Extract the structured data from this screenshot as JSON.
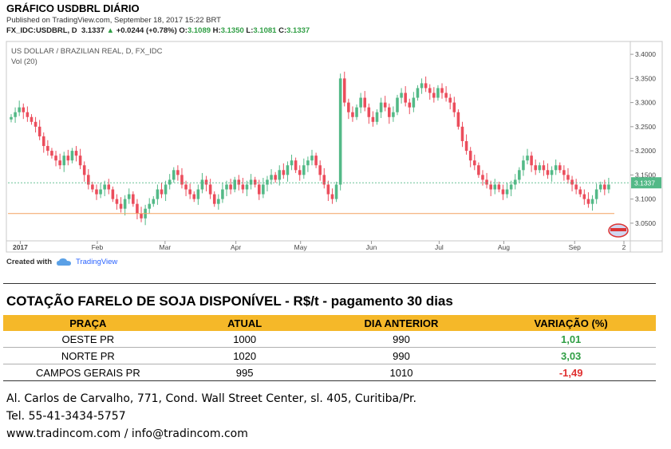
{
  "header": {
    "title": "GRÁFICO USDBRL DIÁRIO",
    "published": "Published on TradingView.com, September 18, 2017 15:22 BRT",
    "symbol": "FX_IDC:USDBRL, D",
    "last": "3.1337",
    "change": "+0.0244 (+0.78%)",
    "o_label": "O:",
    "o": "3.1089",
    "h_label": "H:",
    "h": "3.1350",
    "l_label": "L:",
    "l": "3.1081",
    "c_label": "C:",
    "c": "3.1337"
  },
  "chart_data": {
    "type": "candlestick",
    "legend_title": "US DOLLAR / BRAZILIAN REAL, D, FX_IDC",
    "volume_label": "Vol (20)",
    "y_ticks": [
      "3.4000",
      "3.3500",
      "3.3000",
      "3.2500",
      "3.2000",
      "3.1500",
      "3.1000",
      "3.0500"
    ],
    "ylim": [
      3.02,
      3.42
    ],
    "x_ticks": [
      "2017",
      "Feb",
      "Mar",
      "Apr",
      "May",
      "Jun",
      "Jul",
      "Aug",
      "Sep",
      "2"
    ],
    "last_price_label": "3.1337",
    "last_price": 3.1337,
    "support_level": 3.07,
    "up_color": "#53b987",
    "down_color": "#eb4d5c",
    "closes": [
      3.27,
      3.28,
      3.29,
      3.28,
      3.27,
      3.26,
      3.25,
      3.23,
      3.21,
      3.2,
      3.19,
      3.18,
      3.17,
      3.19,
      3.18,
      3.2,
      3.19,
      3.17,
      3.15,
      3.13,
      3.12,
      3.11,
      3.12,
      3.13,
      3.12,
      3.1,
      3.09,
      3.08,
      3.1,
      3.11,
      3.09,
      3.07,
      3.06,
      3.08,
      3.09,
      3.1,
      3.12,
      3.11,
      3.13,
      3.14,
      3.16,
      3.15,
      3.13,
      3.12,
      3.11,
      3.1,
      3.12,
      3.14,
      3.13,
      3.11,
      3.09,
      3.1,
      3.12,
      3.13,
      3.12,
      3.14,
      3.13,
      3.12,
      3.13,
      3.14,
      3.13,
      3.11,
      3.13,
      3.14,
      3.15,
      3.14,
      3.16,
      3.15,
      3.17,
      3.18,
      3.16,
      3.15,
      3.17,
      3.18,
      3.19,
      3.17,
      3.15,
      3.13,
      3.11,
      3.1,
      3.13,
      3.35,
      3.3,
      3.28,
      3.27,
      3.29,
      3.31,
      3.29,
      3.27,
      3.26,
      3.28,
      3.3,
      3.29,
      3.27,
      3.28,
      3.31,
      3.32,
      3.3,
      3.29,
      3.31,
      3.33,
      3.34,
      3.33,
      3.32,
      3.31,
      3.33,
      3.32,
      3.31,
      3.3,
      3.28,
      3.25,
      3.22,
      3.2,
      3.18,
      3.17,
      3.15,
      3.14,
      3.13,
      3.12,
      3.13,
      3.12,
      3.11,
      3.12,
      3.13,
      3.14,
      3.16,
      3.18,
      3.19,
      3.17,
      3.16,
      3.17,
      3.16,
      3.15,
      3.16,
      3.17,
      3.16,
      3.15,
      3.14,
      3.13,
      3.12,
      3.11,
      3.1,
      3.09,
      3.1,
      3.12,
      3.13,
      3.12,
      3.13
    ]
  },
  "credits": {
    "created_with": "Created with",
    "tradingview": "TradingView"
  },
  "table": {
    "title": "COTAÇÃO FARELO DE SOJA DISPONÍVEL - R$/t - pagamento 30 dias",
    "headers": [
      "PRAÇA",
      "ATUAL",
      "DIA ANTERIOR",
      "VARIAÇÃO (%)"
    ],
    "rows": [
      {
        "praca": "OESTE PR",
        "atual": "1000",
        "anterior": "990",
        "variacao": "1,01",
        "sign": "pos"
      },
      {
        "praca": "NORTE PR",
        "atual": "1020",
        "anterior": "990",
        "variacao": "3,03",
        "sign": "pos"
      },
      {
        "praca": "CAMPOS GERAIS PR",
        "atual": "995",
        "anterior": "1010",
        "variacao": "-1,49",
        "sign": "neg"
      }
    ]
  },
  "footer": {
    "address": "Al. Carlos de Carvalho, 771, Cond. Wall Street Center, sl. 405, Curitiba/Pr.",
    "phone": "Tel. 55-41-3434-5757",
    "web": "www.tradincom.com / info@tradincom.com"
  }
}
